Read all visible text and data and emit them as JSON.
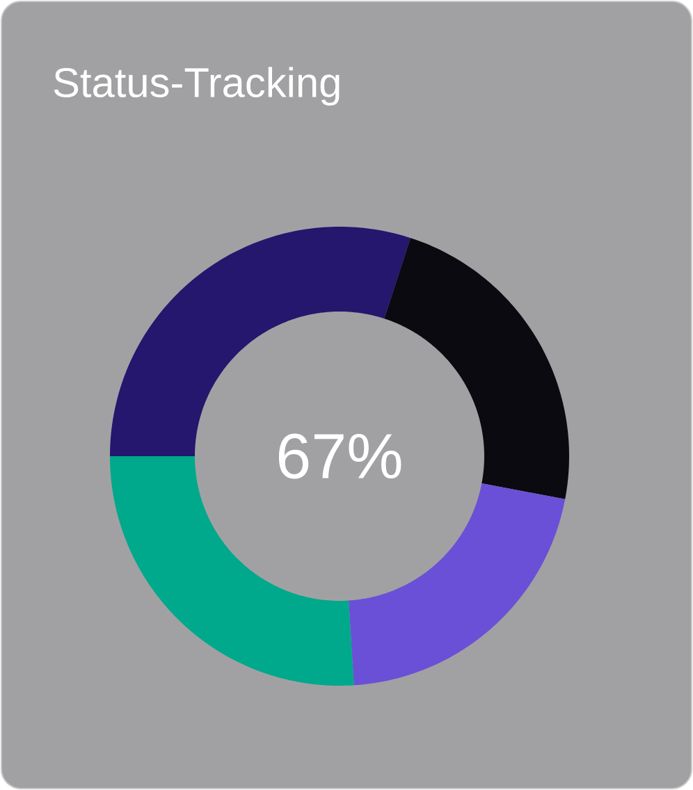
{
  "chart_data": {
    "type": "donut",
    "title": "Status-Tracking",
    "categories": [
      null,
      null,
      null,
      null
    ],
    "values": [
      30,
      23,
      21,
      26
    ],
    "colors": [
      "#25166e",
      "#0a0a10",
      "#6a50d6",
      "#00a88c"
    ],
    "annotations": [
      "67%"
    ]
  }
}
